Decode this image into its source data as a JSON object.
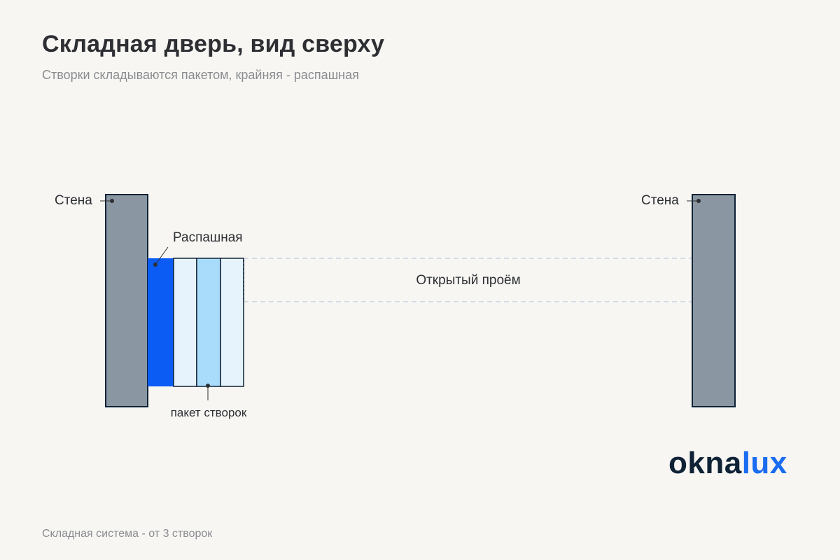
{
  "header": {
    "title": "Складная дверь, вид сверху",
    "subtitle": "Створки складываются пакетом, крайняя - распашная"
  },
  "diagram": {
    "left_wall_label": "Стена",
    "right_wall_label": "Стена",
    "swing_leaf_label": "Распашная",
    "opening_label": "Открытый проём",
    "leaf_stack_label": "пакет створок",
    "colors": {
      "wall": "#8a96a2",
      "outline": "#0f2236",
      "swing_leaf": "#0a5cf5",
      "folded_leaf_light": "#e6f2fc",
      "folded_leaf_mid": "#a8dcfa",
      "opening_guides": "#c8d2dc"
    }
  },
  "logo": {
    "part1": "okna",
    "part2": "lux"
  },
  "footer": {
    "note": "Складная система - от 3 створок"
  }
}
